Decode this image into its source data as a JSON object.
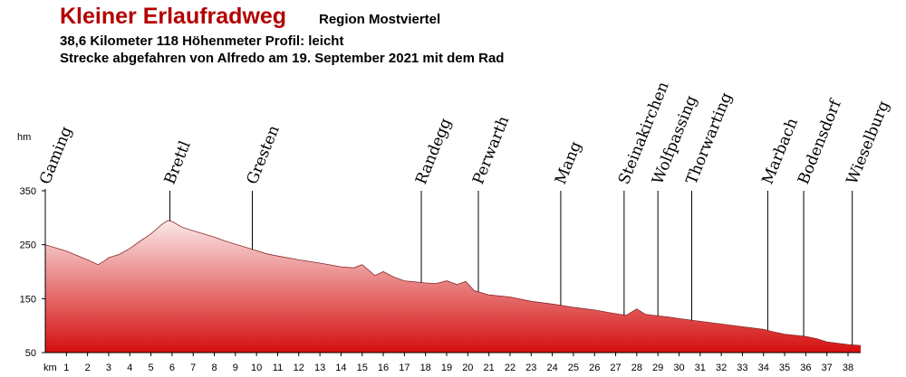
{
  "header": {
    "title": "Kleiner Erlaufradweg",
    "region": "Region Mostviertel",
    "stats": "38,6 Kilometer 118 Höhenmeter  Profil: leicht",
    "ride": "Strecke abgefahren von Alfredo am 19. September 2021 mit dem Rad"
  },
  "chart_data": {
    "type": "area",
    "title": "",
    "xlabel": "km",
    "ylabel": "hm",
    "xlim": [
      0,
      38.6
    ],
    "ylim": [
      50,
      350
    ],
    "y_ticks": [
      50,
      150,
      250,
      350
    ],
    "x_ticks": [
      1,
      2,
      3,
      4,
      5,
      6,
      7,
      8,
      9,
      10,
      11,
      12,
      13,
      14,
      15,
      16,
      17,
      18,
      19,
      20,
      21,
      22,
      23,
      24,
      25,
      26,
      27,
      28,
      29,
      30,
      31,
      32,
      33,
      34,
      35,
      36,
      37,
      38
    ],
    "series": [
      {
        "values": [
          {
            "x": 0,
            "y": 250
          },
          {
            "x": 0.5,
            "y": 244
          },
          {
            "x": 1,
            "y": 238
          },
          {
            "x": 1.5,
            "y": 230
          },
          {
            "x": 2,
            "y": 222
          },
          {
            "x": 2.5,
            "y": 213
          },
          {
            "x": 2.8,
            "y": 220
          },
          {
            "x": 3,
            "y": 226
          },
          {
            "x": 3.5,
            "y": 232
          },
          {
            "x": 4,
            "y": 243
          },
          {
            "x": 4.5,
            "y": 257
          },
          {
            "x": 5,
            "y": 270
          },
          {
            "x": 5.5,
            "y": 287
          },
          {
            "x": 5.8,
            "y": 295
          },
          {
            "x": 6,
            "y": 293
          },
          {
            "x": 6.5,
            "y": 282
          },
          {
            "x": 7,
            "y": 276
          },
          {
            "x": 7.5,
            "y": 270
          },
          {
            "x": 8,
            "y": 264
          },
          {
            "x": 8.5,
            "y": 257
          },
          {
            "x": 9,
            "y": 251
          },
          {
            "x": 9.5,
            "y": 245
          },
          {
            "x": 10,
            "y": 239
          },
          {
            "x": 10.5,
            "y": 233
          },
          {
            "x": 11,
            "y": 229
          },
          {
            "x": 12,
            "y": 222
          },
          {
            "x": 13,
            "y": 216
          },
          {
            "x": 14,
            "y": 209
          },
          {
            "x": 14.6,
            "y": 207
          },
          {
            "x": 15,
            "y": 213
          },
          {
            "x": 15.3,
            "y": 203
          },
          {
            "x": 15.6,
            "y": 193
          },
          {
            "x": 16,
            "y": 200
          },
          {
            "x": 16.5,
            "y": 190
          },
          {
            "x": 17,
            "y": 183
          },
          {
            "x": 17.5,
            "y": 181
          },
          {
            "x": 18,
            "y": 179
          },
          {
            "x": 18.5,
            "y": 178
          },
          {
            "x": 19,
            "y": 183
          },
          {
            "x": 19.5,
            "y": 176
          },
          {
            "x": 19.9,
            "y": 182
          },
          {
            "x": 20.3,
            "y": 165
          },
          {
            "x": 21,
            "y": 157
          },
          {
            "x": 22,
            "y": 153
          },
          {
            "x": 23,
            "y": 145
          },
          {
            "x": 24,
            "y": 140
          },
          {
            "x": 25,
            "y": 134
          },
          {
            "x": 26,
            "y": 129
          },
          {
            "x": 27,
            "y": 122
          },
          {
            "x": 27.5,
            "y": 119
          },
          {
            "x": 28,
            "y": 131
          },
          {
            "x": 28.4,
            "y": 121
          },
          {
            "x": 29,
            "y": 118
          },
          {
            "x": 29.5,
            "y": 116
          },
          {
            "x": 30,
            "y": 113
          },
          {
            "x": 31,
            "y": 108
          },
          {
            "x": 32,
            "y": 103
          },
          {
            "x": 33,
            "y": 98
          },
          {
            "x": 34,
            "y": 93
          },
          {
            "x": 34.5,
            "y": 88
          },
          {
            "x": 35,
            "y": 84
          },
          {
            "x": 36,
            "y": 80
          },
          {
            "x": 36.5,
            "y": 76
          },
          {
            "x": 37,
            "y": 70
          },
          {
            "x": 38,
            "y": 65
          },
          {
            "x": 38.6,
            "y": 63
          }
        ]
      }
    ],
    "places": [
      {
        "name": "Gaming",
        "km": 0
      },
      {
        "name": "Brettl",
        "km": 5.9
      },
      {
        "name": "Gresten",
        "km": 9.8
      },
      {
        "name": "Randegg",
        "km": 17.8
      },
      {
        "name": "Perwarth",
        "km": 20.5
      },
      {
        "name": "Mang",
        "km": 24.4
      },
      {
        "name": "Steinakirchen",
        "km": 27.4
      },
      {
        "name": "Wolfpassing",
        "km": 29.0
      },
      {
        "name": "Thorwarting",
        "km": 30.6
      },
      {
        "name": "Marbach",
        "km": 34.2
      },
      {
        "name": "Bodensdorf",
        "km": 35.9
      },
      {
        "name": "Wieselburg",
        "km": 38.2
      }
    ],
    "colors": {
      "fill_top": "#fbe8e8",
      "fill_bottom": "#d50f0f",
      "title": "#b30000",
      "axis": "#000000"
    },
    "grid": false
  }
}
